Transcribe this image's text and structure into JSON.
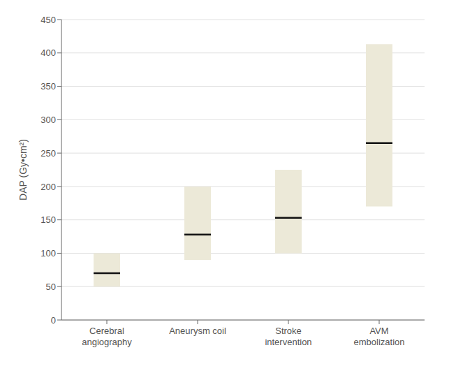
{
  "chart_data": {
    "type": "box",
    "categories": [
      "Cerebral\nangiography",
      "Aneurysm coil",
      "Stroke\nintervention",
      "AVM\nembolization"
    ],
    "boxes": [
      {
        "q1": 50,
        "q3": 100,
        "median": 70
      },
      {
        "q1": 90,
        "q3": 200,
        "median": 128
      },
      {
        "q1": 100,
        "q3": 225,
        "median": 153
      },
      {
        "q1": 170,
        "q3": 413,
        "median": 265
      }
    ],
    "ylabel": "DAP (Gy•cm²)",
    "ylim": [
      0,
      450
    ],
    "yticks": [
      0,
      50,
      100,
      150,
      200,
      250,
      300,
      350,
      400,
      450
    ],
    "color": "#ece9d8",
    "grid": true
  }
}
